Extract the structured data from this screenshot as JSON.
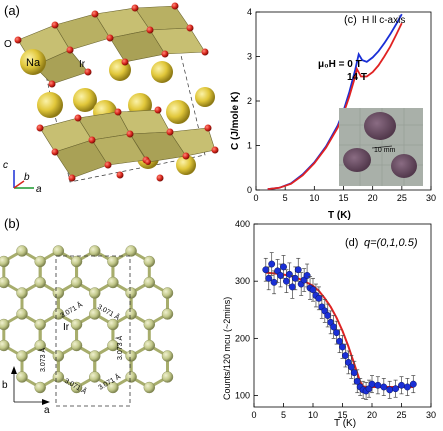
{
  "colors": {
    "na": "#e6cc3a",
    "o": "#d8261c",
    "ir_poly": "#c7bf72",
    "ir_node": "#c2c88a",
    "blue": "#1a2fd6",
    "red": "#e02222",
    "photo_bg": "#a9b0a9",
    "crystal": "#6a4f63"
  },
  "panel_a": {
    "letter": "(a)",
    "label_o": "O",
    "label_na": "Na",
    "label_ir": "Ir",
    "axis_c": "c",
    "axis_b": "b",
    "axis_a": "a"
  },
  "panel_b": {
    "letter": "(b)",
    "label_ir": "Ir",
    "bond_a": "3.071 Å",
    "bond_b": "3.073 Å",
    "axis_b": "b",
    "axis_a": "a"
  },
  "panel_c": {
    "letter": "(c)",
    "condition": "H ll c-axis",
    "label_0T": "μ₀H = 0 T",
    "label_14T": "14 T",
    "scale_label": "10 mm"
  },
  "panel_d": {
    "letter": "(d)",
    "q_label": "q=(0,1,0.5)"
  },
  "chart_data": [
    {
      "type": "line",
      "panel": "(c)",
      "xlabel": "T (K)",
      "ylabel": "C (J/mole K)",
      "xlim": [
        0,
        30
      ],
      "ylim": [
        0,
        4
      ],
      "xticks": [
        0,
        5,
        10,
        15,
        20,
        25,
        30
      ],
      "yticks": [
        0,
        1,
        2,
        3,
        4
      ],
      "series": [
        {
          "name": "μ₀H = 0 T",
          "color": "#1a2fd6",
          "x": [
            2,
            4,
            6,
            8,
            10,
            12,
            14,
            15,
            16,
            17,
            17.6,
            18.2,
            19,
            20,
            21,
            22,
            23,
            24,
            25
          ],
          "y": [
            0.02,
            0.05,
            0.15,
            0.35,
            0.62,
            0.98,
            1.45,
            1.78,
            2.2,
            2.7,
            3.05,
            2.92,
            2.88,
            2.98,
            3.12,
            3.3,
            3.5,
            3.72,
            3.95
          ]
        },
        {
          "name": "14 T",
          "color": "#e02222",
          "x": [
            2,
            4,
            6,
            8,
            10,
            12,
            14,
            15,
            16,
            17,
            17.3,
            18,
            19,
            20,
            21,
            22,
            23,
            24,
            25
          ],
          "y": [
            0.02,
            0.05,
            0.14,
            0.33,
            0.6,
            0.95,
            1.4,
            1.72,
            2.1,
            2.55,
            2.72,
            2.55,
            2.55,
            2.65,
            2.8,
            3.0,
            3.22,
            3.48,
            3.75
          ]
        }
      ]
    },
    {
      "type": "scatter",
      "panel": "(d)",
      "xlabel": "T (K)",
      "ylabel": "Counts/120 mcu (~2mins)",
      "xlim": [
        0,
        30
      ],
      "ylim": [
        80,
        400
      ],
      "xticks": [
        0,
        5,
        10,
        15,
        20,
        25,
        30
      ],
      "yticks": [
        100,
        200,
        300,
        400
      ],
      "points": {
        "x": [
          2,
          2.5,
          3,
          3.4,
          4,
          4.5,
          5,
          5.5,
          6,
          6.5,
          7,
          7.5,
          8,
          8.5,
          9,
          9.5,
          10,
          10.5,
          11,
          11.5,
          12,
          12.5,
          13,
          13.5,
          14,
          14.5,
          15,
          15.5,
          16,
          16.5,
          17,
          17.5,
          18,
          18.5,
          19,
          19.5,
          20,
          21,
          22,
          23,
          24,
          25,
          26,
          27
        ],
        "y": [
          320,
          305,
          330,
          298,
          318,
          310,
          325,
          300,
          312,
          290,
          305,
          320,
          295,
          302,
          310,
          288,
          285,
          275,
          270,
          255,
          248,
          240,
          228,
          220,
          210,
          195,
          185,
          170,
          158,
          150,
          140,
          125,
          115,
          110,
          108,
          112,
          120,
          118,
          115,
          110,
          112,
          118,
          115,
          120
        ],
        "err": [
          20,
          20,
          20,
          20,
          20,
          20,
          20,
          20,
          20,
          20,
          20,
          20,
          20,
          20,
          20,
          20,
          20,
          20,
          20,
          20,
          20,
          20,
          20,
          20,
          20,
          20,
          20,
          20,
          20,
          20,
          20,
          20,
          15,
          15,
          15,
          15,
          15,
          15,
          15,
          15,
          15,
          15,
          15,
          15
        ],
        "color": "#1a2fd6"
      },
      "fit": {
        "color": "#e02222",
        "x": [
          2,
          4,
          6,
          8,
          10,
          11,
          12,
          13,
          14,
          15,
          16,
          17,
          18,
          18.5,
          19,
          20,
          22,
          24,
          26,
          27
        ],
        "y": [
          315,
          313,
          310,
          303,
          292,
          283,
          270,
          255,
          236,
          213,
          186,
          155,
          124,
          116,
          115,
          115,
          115,
          115,
          115,
          115
        ]
      }
    }
  ]
}
